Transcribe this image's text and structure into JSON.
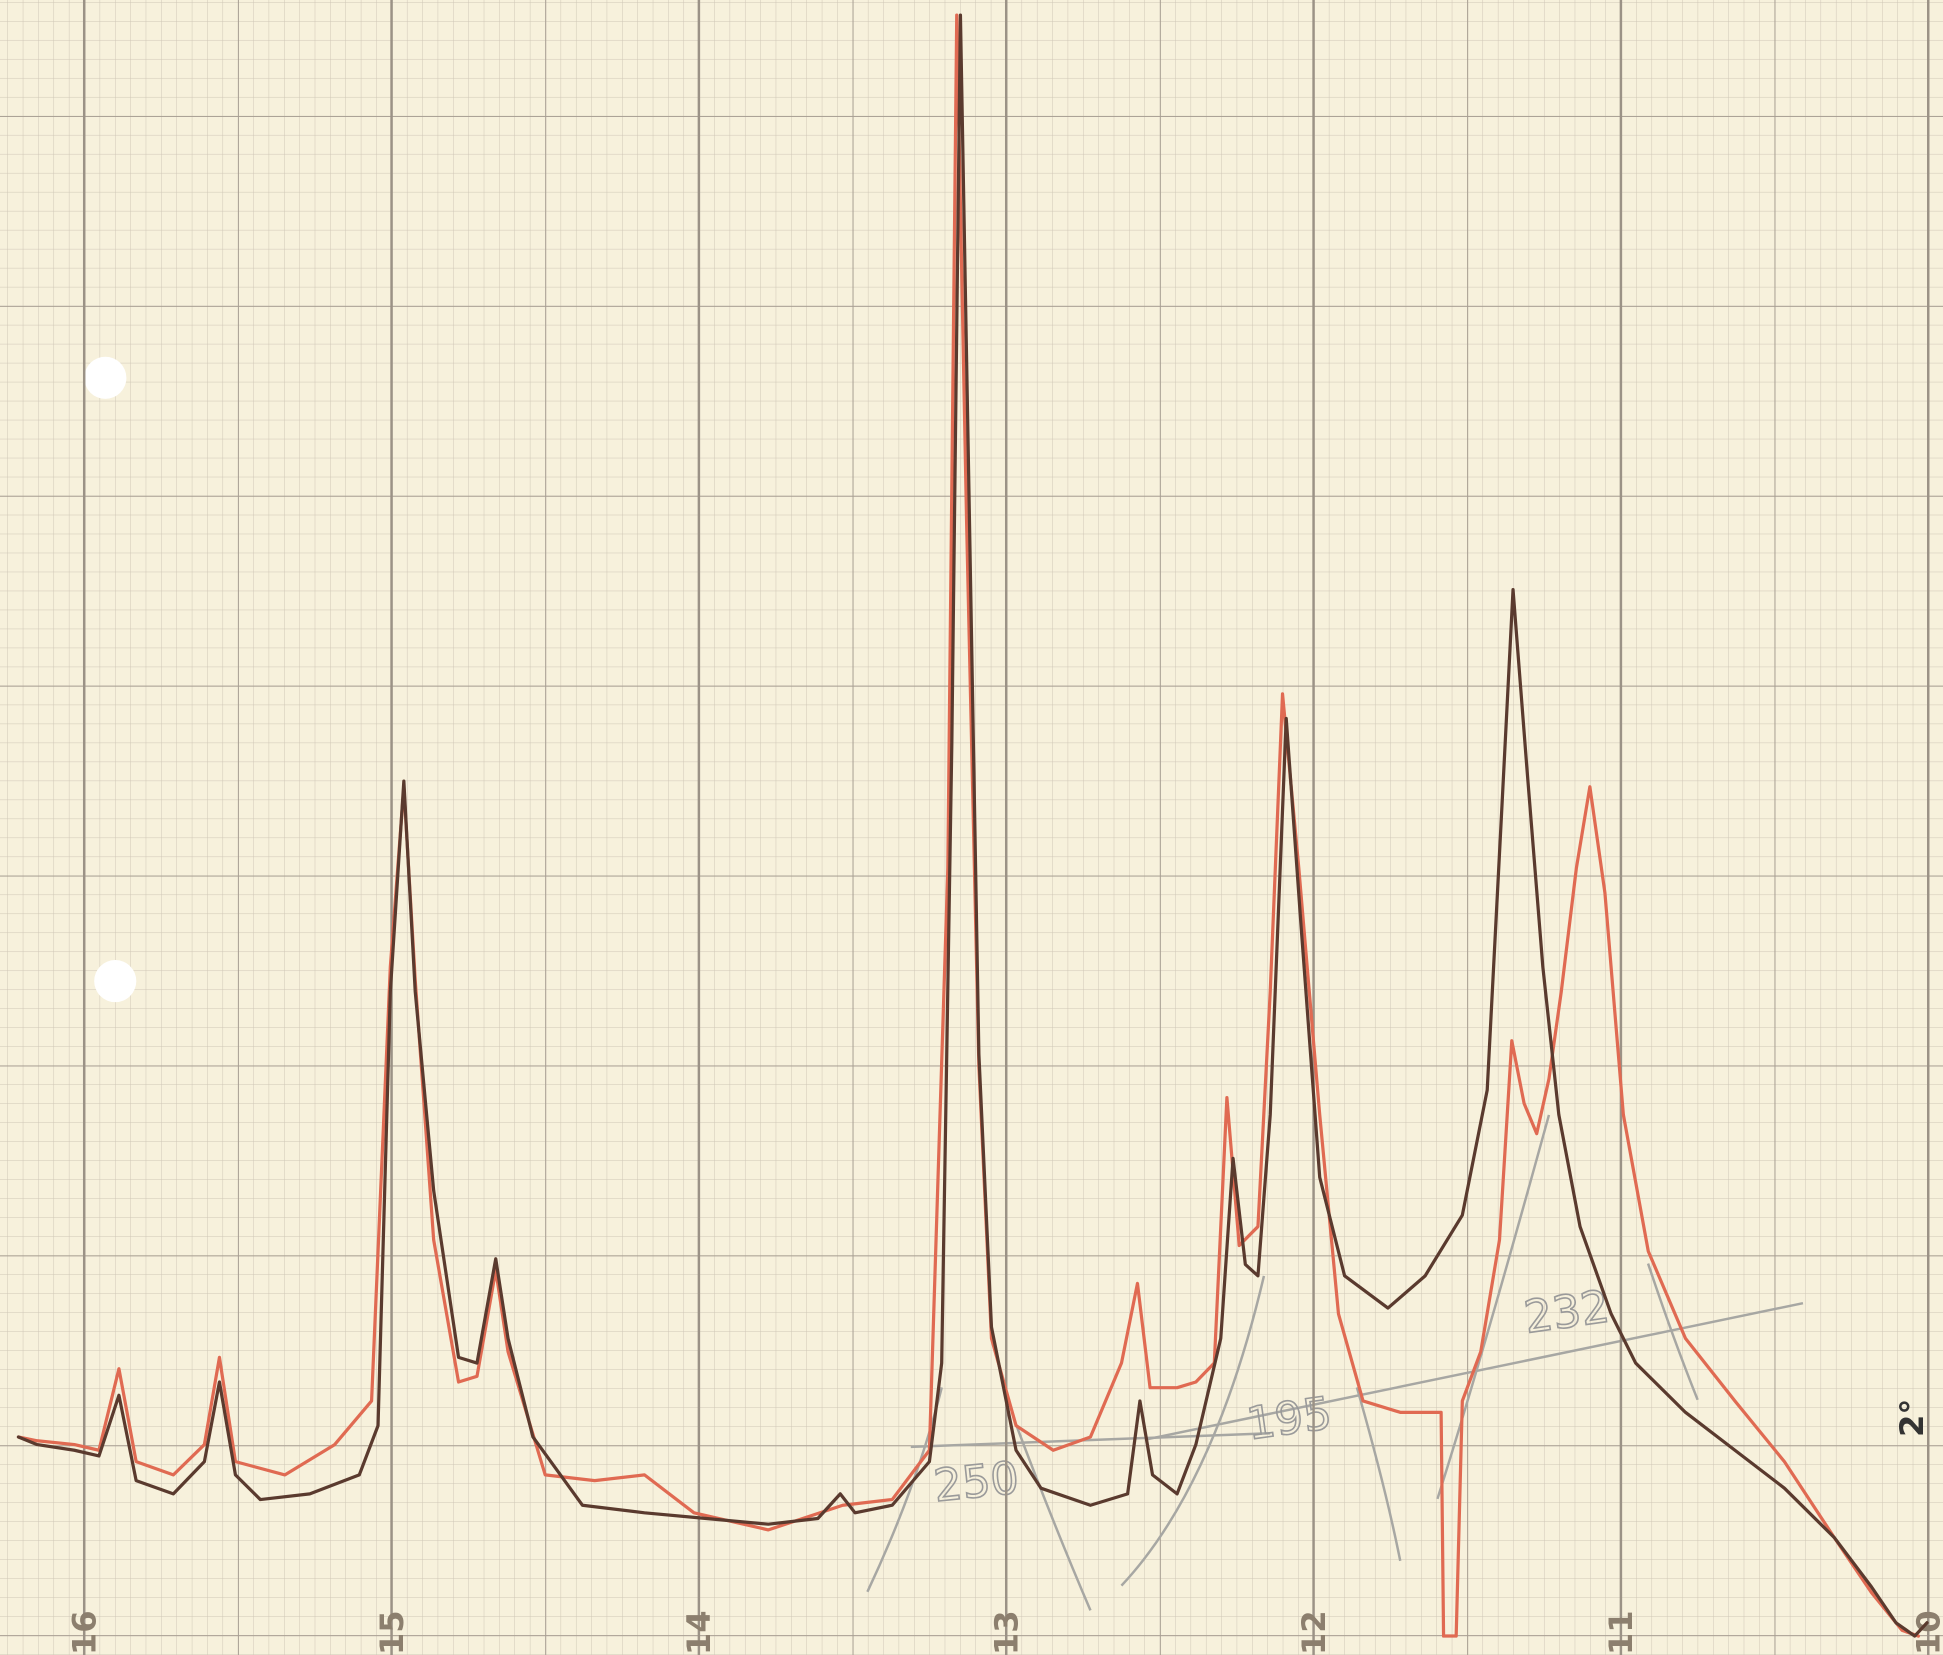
{
  "chart_data": {
    "type": "line",
    "xlim": [
      16.274,
      9.952
    ],
    "ylim": [
      -0.1,
      8.63
    ],
    "xticks": [
      16,
      15,
      14,
      13,
      12,
      11,
      10
    ],
    "annotations": [
      "250",
      "195",
      "232",
      "2°"
    ],
    "series": [
      {
        "color": "#e06a52",
        "x": [
          16.214,
          16.153,
          16.032,
          15.952,
          15.887,
          15.831,
          15.71,
          15.609,
          15.56,
          15.508,
          15.347,
          15.185,
          15.065,
          15.004,
          14.96,
          14.923,
          14.863,
          14.782,
          14.722,
          14.661,
          14.621,
          14.5,
          14.339,
          14.177,
          14.016,
          13.774,
          13.532,
          13.371,
          13.25,
          13.19,
          13.161,
          13.129,
          13.089,
          13.048,
          12.968,
          12.847,
          12.726,
          12.625,
          12.573,
          12.532,
          12.444,
          12.383,
          12.323,
          12.282,
          12.242,
          12.181,
          12.141,
          12.101,
          12.048,
          11.98,
          11.919,
          11.839,
          11.718,
          11.597,
          11.585,
          11.577,
          11.536,
          11.516,
          11.456,
          11.395,
          11.355,
          11.315,
          11.274,
          11.234,
          11.194,
          11.145,
          11.101,
          11.052,
          10.992,
          10.911,
          10.79,
          10.629,
          10.468,
          10.306,
          10.185,
          10.085,
          10.032
        ],
        "values": [
          1.05,
          1.03,
          1.01,
          0.98,
          1.41,
          0.92,
          0.85,
          1.01,
          1.47,
          0.92,
          0.85,
          1.01,
          1.24,
          3.53,
          4.48,
          3.46,
          2.09,
          1.34,
          1.37,
          1.93,
          1.5,
          0.85,
          0.82,
          0.85,
          0.65,
          0.56,
          0.69,
          0.72,
          0.98,
          4.05,
          8.55,
          5.88,
          3.01,
          1.57,
          1.11,
          0.98,
          1.05,
          1.44,
          1.86,
          1.31,
          1.31,
          1.34,
          1.44,
          2.84,
          2.06,
          2.16,
          3.4,
          4.97,
          4.05,
          2.75,
          1.7,
          1.24,
          1.18,
          1.18,
          1.18,
          0,
          0,
          1.24,
          1.5,
          2.09,
          3.14,
          2.81,
          2.65,
          2.94,
          3.4,
          4.05,
          4.48,
          3.92,
          2.75,
          2.03,
          1.57,
          1.24,
          0.92,
          0.52,
          0.23,
          0.03,
          0
        ]
      },
      {
        "color": "#5a3a2e",
        "x": [
          16.214,
          16.153,
          16.032,
          15.952,
          15.887,
          15.831,
          15.71,
          15.609,
          15.56,
          15.508,
          15.427,
          15.266,
          15.105,
          15.044,
          15.004,
          14.96,
          14.923,
          14.863,
          14.782,
          14.722,
          14.661,
          14.621,
          14.54,
          14.379,
          14.177,
          13.976,
          13.774,
          13.613,
          13.54,
          13.492,
          13.371,
          13.25,
          13.21,
          13.177,
          13.149,
          13.121,
          13.089,
          13.048,
          12.968,
          12.887,
          12.726,
          12.605,
          12.565,
          12.524,
          12.444,
          12.383,
          12.302,
          12.262,
          12.222,
          12.181,
          12.141,
          12.089,
          12.04,
          11.98,
          11.899,
          11.758,
          11.637,
          11.516,
          11.435,
          11.387,
          11.351,
          11.306,
          11.254,
          11.202,
          11.133,
          11.032,
          10.952,
          10.79,
          10.629,
          10.468,
          10.306,
          10.185,
          10.105,
          10.044,
          10.004
        ],
        "values": [
          1.05,
          1.01,
          0.98,
          0.95,
          1.27,
          0.82,
          0.75,
          0.92,
          1.34,
          0.85,
          0.72,
          0.75,
          0.85,
          1.11,
          3.4,
          4.51,
          3.4,
          2.35,
          1.47,
          1.44,
          1.99,
          1.57,
          1.05,
          0.69,
          0.65,
          0.62,
          0.59,
          0.62,
          0.75,
          0.65,
          0.69,
          0.92,
          1.44,
          4.71,
          8.55,
          6.01,
          3.07,
          1.63,
          0.98,
          0.78,
          0.69,
          0.75,
          1.24,
          0.85,
          0.75,
          1.01,
          1.57,
          2.52,
          1.96,
          1.9,
          2.75,
          4.84,
          3.73,
          2.42,
          1.9,
          1.73,
          1.9,
          2.22,
          2.88,
          4.38,
          5.52,
          4.58,
          3.53,
          2.75,
          2.16,
          1.7,
          1.44,
          1.18,
          0.98,
          0.78,
          0.52,
          0.26,
          0.07,
          0,
          0.07
        ]
      }
    ]
  }
}
